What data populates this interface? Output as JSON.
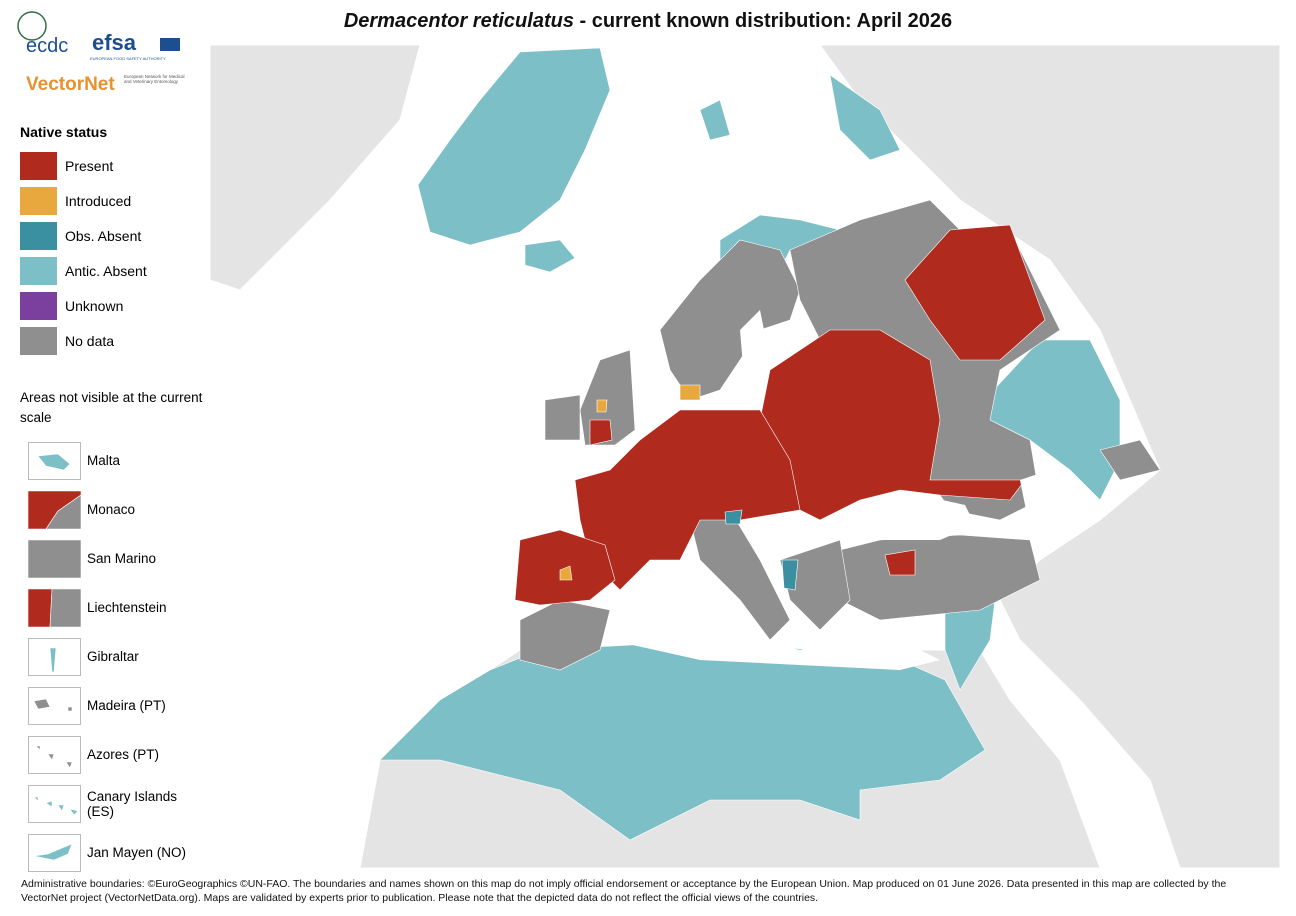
{
  "header": {
    "title_species": "Dermacentor reticulatus",
    "title_rest": " - current known distribution: April 2026"
  },
  "logos": {
    "ecdc": "ecdc",
    "efsa": "efsa",
    "efsa_sub": "EUROPEAN FOOD SAFETY AUTHORITY",
    "vectornet": "VectorNet",
    "vectornet_sub": "European Network for Medical and Veterinary Entomology"
  },
  "legend": {
    "title": "Native status",
    "items": [
      {
        "label": "Present",
        "color": "#b02a1e"
      },
      {
        "label": "Introduced",
        "color": "#e8a83e"
      },
      {
        "label": "Obs. Absent",
        "color": "#3a8fa0"
      },
      {
        "label": "Antic. Absent",
        "color": "#7dbfc6"
      },
      {
        "label": "Unknown",
        "color": "#7b3f9e"
      },
      {
        "label": "No data",
        "color": "#8f8f8f"
      }
    ]
  },
  "insets": {
    "note": "Areas not visible at the current scale",
    "items": [
      "Malta",
      "Monaco",
      "San Marino",
      "Liechtenstein",
      "Gibraltar",
      "Madeira (PT)",
      "Azores (PT)",
      "Canary Islands (ES)",
      "Jan Mayen (NO)"
    ]
  },
  "footer": {
    "line1": "Administrative boundaries: ©EuroGeographics ©UN-FAO. The boundaries and names shown on this map do not imply official endorsement or acceptance by the European Union. Map produced on 01 June 2026. Data presented in this map are collected by the",
    "line2": "VectorNet project (VectorNetData.org). Maps are validated by experts prior to publication. Please note that the depicted data do not reflect the official views of the countries."
  }
}
